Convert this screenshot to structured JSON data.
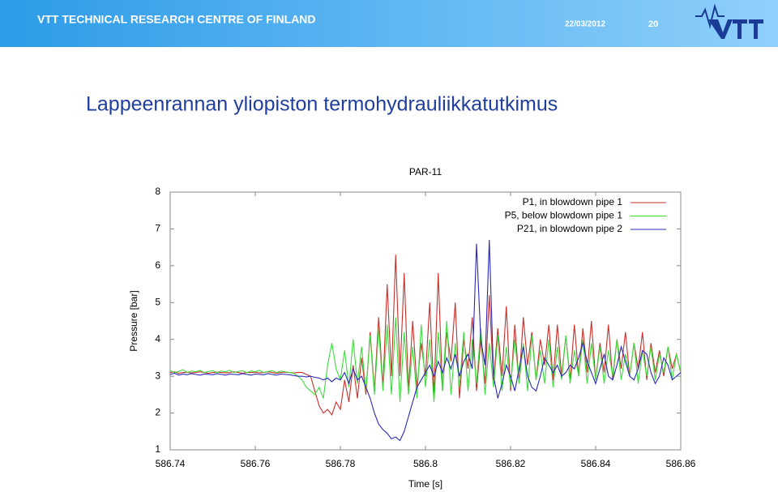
{
  "header": {
    "organization": "VTT TECHNICAL RESEARCH CENTRE OF FINLAND",
    "date": "22/03/2012",
    "page_number": "20"
  },
  "slide_title": "Lappeenrannan yliopiston termohydrauliikkatutkimus",
  "chart_data": {
    "type": "line",
    "title": "PAR-11",
    "x_label": "Time [s]",
    "y_label": "Pressure [bar]",
    "xlim": [
      586.74,
      586.86
    ],
    "xticks": [
      586.74,
      586.76,
      586.78,
      586.8,
      586.82,
      586.84,
      586.86
    ],
    "ylim": [
      1,
      8
    ],
    "yticks": [
      1,
      2,
      3,
      4,
      5,
      6,
      7,
      8
    ],
    "grid": false,
    "legend": "upper right",
    "x": [
      586.74,
      586.741,
      586.742,
      586.743,
      586.744,
      586.745,
      586.746,
      586.747,
      586.748,
      586.749,
      586.75,
      586.751,
      586.752,
      586.753,
      586.754,
      586.755,
      586.756,
      586.757,
      586.758,
      586.759,
      586.76,
      586.761,
      586.762,
      586.763,
      586.764,
      586.765,
      586.766,
      586.767,
      586.768,
      586.769,
      586.77,
      586.771,
      586.772,
      586.773,
      586.774,
      586.775,
      586.776,
      586.777,
      586.778,
      586.779,
      586.78,
      586.781,
      586.782,
      586.783,
      586.784,
      586.785,
      586.786,
      586.787,
      586.788,
      586.789,
      586.79,
      586.791,
      586.792,
      586.793,
      586.794,
      586.795,
      586.796,
      586.797,
      586.798,
      586.799,
      586.8,
      586.801,
      586.802,
      586.803,
      586.804,
      586.805,
      586.806,
      586.807,
      586.808,
      586.809,
      586.81,
      586.811,
      586.812,
      586.813,
      586.814,
      586.815,
      586.816,
      586.817,
      586.818,
      586.819,
      586.82,
      586.821,
      586.822,
      586.823,
      586.824,
      586.825,
      586.826,
      586.827,
      586.828,
      586.829,
      586.83,
      586.831,
      586.832,
      586.833,
      586.834,
      586.835,
      586.836,
      586.837,
      586.838,
      586.839,
      586.84,
      586.841,
      586.842,
      586.843,
      586.844,
      586.845,
      586.846,
      586.847,
      586.848,
      586.849,
      586.85,
      586.851,
      586.852,
      586.853,
      586.854,
      586.855,
      586.856,
      586.857,
      586.858,
      586.859,
      586.86
    ],
    "series": [
      {
        "name": "P1, in blowdown pipe 1",
        "color": "#c8302c",
        "values": [
          3.1,
          3.12,
          3.08,
          3.1,
          3.11,
          3.09,
          3.1,
          3.12,
          3.1,
          3.08,
          3.1,
          3.11,
          3.1,
          3.09,
          3.1,
          3.12,
          3.1,
          3.08,
          3.1,
          3.1,
          3.11,
          3.09,
          3.1,
          3.12,
          3.1,
          3.08,
          3.1,
          3.11,
          3.1,
          3.09,
          3.1,
          3.1,
          3.05,
          3.0,
          2.6,
          2.2,
          2.0,
          2.1,
          1.95,
          2.3,
          2.1,
          2.9,
          2.3,
          3.3,
          2.4,
          3.5,
          2.5,
          4.2,
          2.6,
          4.6,
          2.7,
          5.5,
          3.0,
          6.3,
          3.0,
          5.8,
          2.6,
          4.5,
          2.7,
          3.9,
          3.0,
          5.0,
          2.5,
          5.8,
          2.6,
          4.2,
          3.4,
          5.0,
          2.4,
          4.0,
          3.2,
          4.6,
          2.6,
          4.0,
          2.8,
          5.2,
          2.9,
          4.3,
          3.0,
          4.9,
          2.6,
          4.4,
          2.8,
          4.6,
          3.3,
          4.2,
          2.9,
          4.0,
          3.3,
          4.4,
          2.9,
          4.4,
          3.0,
          4.1,
          2.9,
          4.4,
          3.0,
          4.3,
          3.1,
          4.5,
          2.9,
          3.9,
          3.1,
          4.4,
          2.9,
          4.0,
          3.2,
          4.2,
          3.0,
          3.9,
          3.2,
          4.2,
          2.9,
          3.9,
          3.1,
          3.7,
          3.0,
          3.8,
          3.2,
          3.6,
          3.1
        ]
      },
      {
        "name": "P5, below blowdown pipe 1",
        "color": "#3ddc3d",
        "values": [
          3.15,
          3.1,
          3.13,
          3.18,
          3.1,
          3.14,
          3.12,
          3.16,
          3.1,
          3.13,
          3.15,
          3.1,
          3.14,
          3.12,
          3.16,
          3.1,
          3.13,
          3.15,
          3.1,
          3.14,
          3.12,
          3.16,
          3.1,
          3.13,
          3.15,
          3.1,
          3.14,
          3.12,
          3.1,
          3.08,
          3.0,
          2.9,
          2.7,
          2.6,
          2.5,
          2.7,
          2.4,
          3.3,
          3.9,
          3.2,
          2.9,
          3.7,
          2.7,
          4.0,
          2.8,
          3.8,
          2.6,
          4.1,
          2.5,
          4.3,
          2.6,
          4.4,
          2.5,
          4.6,
          2.3,
          4.2,
          2.5,
          3.8,
          2.4,
          4.4,
          2.7,
          4.0,
          2.3,
          4.2,
          2.6,
          4.5,
          2.5,
          3.9,
          2.7,
          4.2,
          2.6,
          4.0,
          2.8,
          4.3,
          2.5,
          3.9,
          2.7,
          4.1,
          2.6,
          3.8,
          2.7,
          4.0,
          2.8,
          3.9,
          2.6,
          4.1,
          2.9,
          3.7,
          2.8,
          4.0,
          2.7,
          3.8,
          2.9,
          4.1,
          2.8,
          3.7,
          3.0,
          4.0,
          2.8,
          3.9,
          2.9,
          3.8,
          2.8,
          3.7,
          3.0,
          4.0,
          2.9,
          3.6,
          3.0,
          3.9,
          2.8,
          3.7,
          3.0,
          3.8,
          2.9,
          3.6,
          3.1,
          3.8,
          2.9,
          3.6,
          3.1
        ]
      },
      {
        "name": "P21, in blowdown pipe 2",
        "color": "#2a2ab8",
        "values": [
          3.05,
          3.08,
          3.03,
          3.06,
          3.04,
          3.07,
          3.05,
          3.03,
          3.06,
          3.05,
          3.04,
          3.07,
          3.05,
          3.03,
          3.06,
          3.05,
          3.04,
          3.07,
          3.05,
          3.03,
          3.06,
          3.05,
          3.04,
          3.07,
          3.05,
          3.03,
          3.06,
          3.05,
          3.04,
          3.02,
          3.0,
          3.0,
          2.98,
          3.0,
          2.97,
          2.95,
          2.9,
          2.95,
          2.85,
          2.95,
          2.9,
          3.1,
          2.8,
          3.2,
          2.9,
          3.0,
          2.7,
          2.4,
          2.0,
          1.7,
          1.55,
          1.45,
          1.3,
          1.35,
          1.25,
          1.5,
          1.9,
          2.3,
          2.7,
          2.9,
          3.1,
          3.3,
          3.0,
          3.4,
          3.1,
          3.5,
          3.2,
          3.6,
          3.0,
          3.4,
          3.6,
          3.2,
          6.6,
          4.0,
          3.3,
          6.7,
          3.0,
          2.4,
          2.8,
          3.3,
          3.0,
          2.6,
          3.2,
          3.8,
          3.0,
          2.7,
          2.6,
          3.0,
          3.5,
          3.3,
          3.1,
          3.3,
          3.0,
          3.1,
          3.3,
          3.2,
          3.5,
          3.9,
          3.4,
          3.1,
          2.8,
          3.2,
          3.6,
          3.0,
          2.9,
          3.3,
          3.8,
          3.4,
          3.0,
          2.9,
          3.2,
          3.7,
          3.6,
          3.1,
          2.8,
          3.0,
          3.5,
          3.3,
          2.9,
          3.0,
          3.1
        ]
      }
    ]
  }
}
